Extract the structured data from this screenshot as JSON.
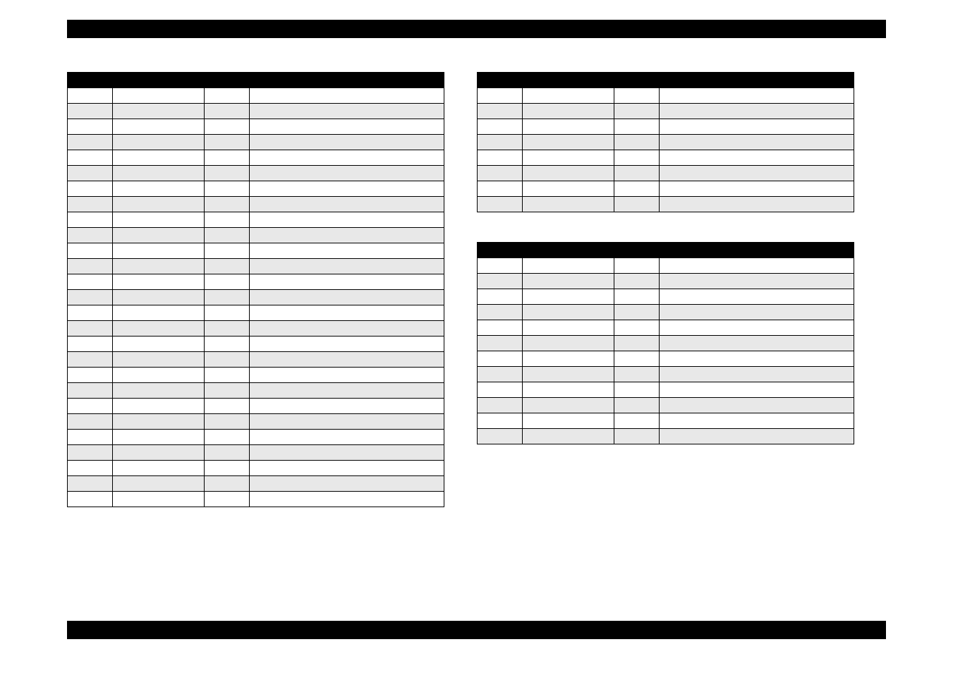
{
  "header": {
    "left": "",
    "right": ""
  },
  "footer": {
    "left": "",
    "center": "",
    "right": ""
  },
  "layout": {
    "table_columns": 4,
    "row_stripe_colors": {
      "odd": "#ffffff",
      "even": "#e8e8e8"
    },
    "border_color": "#000000",
    "header_bg": "#000000",
    "header_fg": "#ffffff"
  },
  "sections": {
    "left": {
      "title": "",
      "row_count": 27,
      "rows": [
        [
          "",
          "",
          "",
          ""
        ],
        [
          "",
          "",
          "",
          ""
        ],
        [
          "",
          "",
          "",
          ""
        ],
        [
          "",
          "",
          "",
          ""
        ],
        [
          "",
          "",
          "",
          ""
        ],
        [
          "",
          "",
          "",
          ""
        ],
        [
          "",
          "",
          "",
          ""
        ],
        [
          "",
          "",
          "",
          ""
        ],
        [
          "",
          "",
          "",
          ""
        ],
        [
          "",
          "",
          "",
          ""
        ],
        [
          "",
          "",
          "",
          ""
        ],
        [
          "",
          "",
          "",
          ""
        ],
        [
          "",
          "",
          "",
          ""
        ],
        [
          "",
          "",
          "",
          ""
        ],
        [
          "",
          "",
          "",
          ""
        ],
        [
          "",
          "",
          "",
          ""
        ],
        [
          "",
          "",
          "",
          ""
        ],
        [
          "",
          "",
          "",
          ""
        ],
        [
          "",
          "",
          "",
          ""
        ],
        [
          "",
          "",
          "",
          ""
        ],
        [
          "",
          "",
          "",
          ""
        ],
        [
          "",
          "",
          "",
          ""
        ],
        [
          "",
          "",
          "",
          ""
        ],
        [
          "",
          "",
          "",
          ""
        ],
        [
          "",
          "",
          "",
          ""
        ],
        [
          "",
          "",
          "",
          ""
        ],
        [
          "",
          "",
          "",
          ""
        ]
      ]
    },
    "right_top": {
      "title": "",
      "row_count": 8,
      "rows": [
        [
          "",
          "",
          "",
          ""
        ],
        [
          "",
          "",
          "",
          ""
        ],
        [
          "",
          "",
          "",
          ""
        ],
        [
          "",
          "",
          "",
          ""
        ],
        [
          "",
          "",
          "",
          ""
        ],
        [
          "",
          "",
          "",
          ""
        ],
        [
          "",
          "",
          "",
          ""
        ],
        [
          "",
          "",
          "",
          ""
        ]
      ]
    },
    "right_bottom": {
      "title": "",
      "row_count": 12,
      "rows": [
        [
          "",
          "",
          "",
          ""
        ],
        [
          "",
          "",
          "",
          ""
        ],
        [
          "",
          "",
          "",
          ""
        ],
        [
          "",
          "",
          "",
          ""
        ],
        [
          "",
          "",
          "",
          ""
        ],
        [
          "",
          "",
          "",
          ""
        ],
        [
          "",
          "",
          "",
          ""
        ],
        [
          "",
          "",
          "",
          ""
        ],
        [
          "",
          "",
          "",
          ""
        ],
        [
          "",
          "",
          "",
          ""
        ],
        [
          "",
          "",
          "",
          ""
        ],
        [
          "",
          "",
          "",
          ""
        ]
      ]
    }
  }
}
